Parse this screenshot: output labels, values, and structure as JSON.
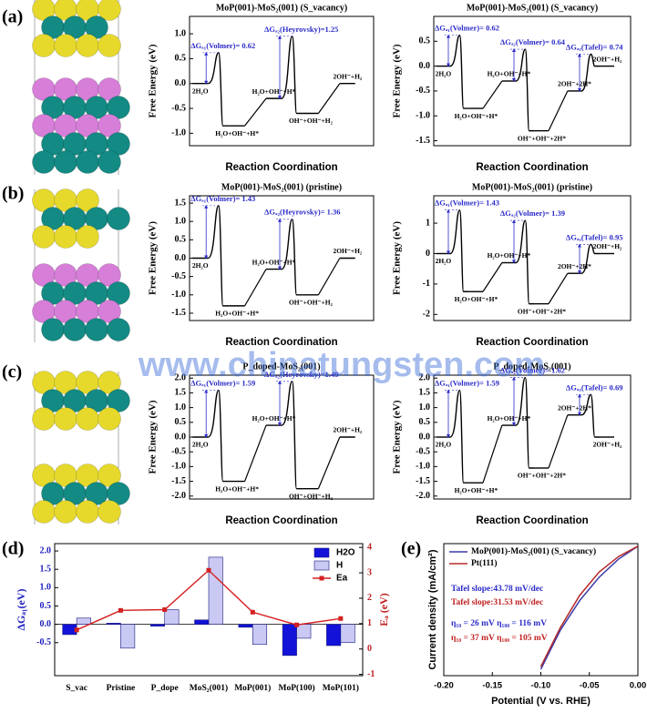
{
  "panel_labels": [
    "(a)",
    "(b)",
    "(c)",
    "(d)",
    "(e)"
  ],
  "watermark": "www.chinatungsten.com",
  "chart_data": [
    {
      "type": "step",
      "title": "MoP(001)-MoS₂(001) (S_vacancy)",
      "x_label": "Reaction Coordination",
      "y_label": "Free Energy (eV)",
      "color": "#000000",
      "annotation_color": "#2b2bc8",
      "ylim": [
        -1.25,
        1.35
      ],
      "yticks": [
        {
          "value": 1,
          "label": "1.0"
        },
        0.5,
        {
          "value": 0,
          "label": "0.0"
        },
        -0.5,
        {
          "value": -1,
          "label": "-1.0"
        }
      ],
      "states": [
        {
          "label": "2H₂O",
          "value": 0
        },
        {
          "label": "H₂O+OH⁻+H*",
          "value": -0.85
        },
        {
          "label": "H₂O+OH⁻+H*",
          "value": -0.3
        },
        {
          "label": "OH⁻+OH⁻+H₂",
          "value": -0.6
        },
        {
          "label": "2OH⁻+H₂",
          "value": 0
        }
      ],
      "barriers": [
        {
          "label": "ΔGₐ₁(Volmer)= 0.62",
          "value": 0.62
        },
        null,
        {
          "label": "ΔGₐ₂(Heyrovsky)=1.25",
          "value": 1.25
        },
        null,
        null
      ]
    },
    {
      "type": "step",
      "title": "MoP(001)-MoS₂(001) (S_vacancy)",
      "x_label": "Reaction Coordination",
      "y_label": "Free Energy (eV)",
      "color": "#000000",
      "annotation_color": "#2b2bc8",
      "ylim": [
        -1.6,
        1.0
      ],
      "yticks": [
        0.5,
        {
          "value": 0,
          "label": "0.0"
        },
        -0.5,
        {
          "value": -1,
          "label": "-1.0"
        },
        -1.5
      ],
      "states": [
        {
          "label": "2H₂O",
          "value": 0
        },
        {
          "label": "H₂O+OH⁻+H*",
          "value": -0.85
        },
        {
          "label": "H₂O+OH⁻+H*",
          "value": -0.3
        },
        {
          "label": "OH⁻+OH⁻+2H*",
          "value": -1.3
        },
        {
          "label": "2OH⁻+2H*",
          "value": -0.5
        },
        {
          "label": "2OH⁻+H₂",
          "value": 0
        }
      ],
      "barriers": [
        {
          "label": "ΔGₐ₁(Volmer)= 0.62",
          "value": 0.62
        },
        null,
        {
          "label": "ΔGₐ₂(Volmer)= 0.64",
          "value": 0.64
        },
        null,
        {
          "label": "ΔGₐ₃(Tafel)= 0.74",
          "value": 0.74
        },
        null
      ]
    },
    {
      "type": "step",
      "title": "MoP(001)-MoS₂(001) (pristine)",
      "x_label": "Reaction Coordination",
      "y_label": "Free Energy (eV)",
      "color": "#000000",
      "annotation_color": "#2b2bc8",
      "ylim": [
        -1.7,
        1.7
      ],
      "yticks": [
        1.5,
        {
          "value": 1,
          "label": "1.0"
        },
        0.5,
        {
          "value": 0,
          "label": "0.0"
        },
        -0.5,
        {
          "value": -1,
          "label": "-1.0"
        },
        -1.5
      ],
      "states": [
        {
          "label": "2H₂O",
          "value": 0
        },
        {
          "label": "H₂O+OH⁻+H*",
          "value": -1.3
        },
        {
          "label": "H₂O+OH⁻+H*",
          "value": -0.3
        },
        {
          "label": "OH⁻+OH⁻+H₂",
          "value": -1.0
        },
        {
          "label": "2OH⁻+H₂",
          "value": 0
        }
      ],
      "barriers": [
        {
          "label": "ΔGₐ₁(Volmer)= 1.43",
          "value": 1.43
        },
        null,
        {
          "label": "ΔGₐ₂(Heyrovsky)= 1.36",
          "value": 1.36
        },
        null,
        null
      ]
    },
    {
      "type": "step",
      "title": "MoP(001)-MoS₂(001) (pristine)",
      "x_label": "Reaction Coordination",
      "y_label": "Free Energy (eV)",
      "color": "#000000",
      "annotation_color": "#2b2bc8",
      "ylim": [
        -2.2,
        1.9
      ],
      "yticks": [
        1,
        0,
        -1,
        -2
      ],
      "states": [
        {
          "label": "2H₂O",
          "value": 0
        },
        {
          "label": "H₂O+OH⁻+H*",
          "value": -1.25
        },
        {
          "label": "H₂O+OH⁻+H*",
          "value": -0.3
        },
        {
          "label": "OH⁻+OH⁻+2H*",
          "value": -1.65
        },
        {
          "label": "2OH⁻+2H*",
          "value": -0.65
        },
        {
          "label": "2OH⁻+H₂",
          "value": 0
        }
      ],
      "barriers": [
        {
          "label": "ΔGₐ₁(Volmer)= 1.43",
          "value": 1.43
        },
        null,
        {
          "label": "ΔGₐ₂(Volmer)= 1.39",
          "value": 1.39
        },
        null,
        {
          "label": "ΔGₐ₃(Tafel)= 0.95",
          "value": 0.95
        },
        null
      ]
    },
    {
      "type": "step",
      "title": "P_doped-MoS₂(001)",
      "x_label": "Reaction Coordination",
      "y_label": "Free Energy (eV)",
      "color": "#000000",
      "annotation_color": "#2b2bc8",
      "ylim": [
        -2.1,
        2.1
      ],
      "yticks": [
        {
          "value": 2,
          "label": "2.0"
        },
        1.5,
        {
          "value": 1,
          "label": "1.0"
        },
        0.5,
        {
          "value": 0,
          "label": "0.0"
        },
        -0.5,
        {
          "value": -1,
          "label": "-1.0"
        },
        -1.5,
        {
          "value": -2,
          "label": "-2.0"
        }
      ],
      "states": [
        {
          "label": "2H₂O",
          "value": 0
        },
        {
          "label": "H₂O+OH⁻+H*",
          "value": -1.5
        },
        {
          "label": "H₂O+OH⁻+H*",
          "value": 0.4
        },
        {
          "label": "OH⁻+OH⁻+H₂",
          "value": -1.75
        },
        {
          "label": "2OH⁻+H₂",
          "value": 0
        }
      ],
      "barriers": [
        {
          "label": "ΔGₐ₁(Volmer)= 1.59",
          "value": 1.59
        },
        null,
        {
          "label": "ΔGₐ₂(Heyrovsky)=1.49",
          "value": 1.49
        },
        null,
        null
      ]
    },
    {
      "type": "step",
      "title": "P_doped-MoS₂(001)",
      "x_label": "Reaction Coordination",
      "y_label": "Free Energy (eV)",
      "color": "#000000",
      "annotation_color": "#2b2bc8",
      "ylim": [
        -2.1,
        2.1
      ],
      "yticks": [
        {
          "value": 2,
          "label": "2.0"
        },
        1.5,
        {
          "value": 1,
          "label": "1.0"
        },
        0.5,
        {
          "value": 0,
          "label": "0.0"
        },
        -0.5,
        {
          "value": -1,
          "label": "-1.0"
        },
        -1.5,
        {
          "value": -2,
          "label": "-2.0"
        }
      ],
      "states": [
        {
          "label": "2H₂O",
          "value": 0
        },
        {
          "label": "H₂O+OH⁻+H*",
          "value": -1.55
        },
        {
          "label": "H₂O+OH⁻+H*",
          "value": 0.4
        },
        {
          "label": "OH⁻+OH⁻+2H*",
          "value": -1.05
        },
        {
          "label": "2OH⁻+2H*",
          "value": 0.75
        },
        {
          "label": "2OH⁻+H₂",
          "value": 0
        }
      ],
      "barriers": [
        {
          "label": "ΔGₐ₁(Volmer)= 1.59",
          "value": 1.59
        },
        null,
        {
          "label": "ΔGₐ₂(Volmer)= 1.62",
          "value": 1.62
        },
        null,
        {
          "label": "ΔGₐ₃(Tafel)= 0.69",
          "value": 0.69
        },
        null
      ]
    },
    {
      "type": "bar",
      "y_label": "ΔGₐ₁(eV)",
      "y2_label": "Eₐ (eV)",
      "legend": "upper right",
      "categories": [
        "S_vac",
        "Pristine",
        "P_dope",
        "MoS₂(001)",
        "MoP(001)",
        "MoP(100)",
        "MoP(101)"
      ],
      "ylim": [
        -1.4,
        2.2
      ],
      "yticks": [
        {
          "value": 2,
          "label": "2.0"
        },
        1.5,
        {
          "value": 1,
          "label": "1.0"
        },
        0.5,
        {
          "value": 0,
          "label": "0.0"
        },
        -0.5
      ],
      "y2lim": [
        -1.05,
        4.15
      ],
      "y2ticks": [
        4,
        3,
        2,
        1,
        0,
        -1
      ],
      "series": [
        {
          "name": "H2O",
          "color": "#1212d8",
          "values": [
            -0.28,
            0.03,
            -0.05,
            0.12,
            -0.08,
            -0.85,
            -0.58
          ]
        },
        {
          "name": "H",
          "color": "#c9c9f4",
          "values": [
            0.17,
            -0.65,
            0.4,
            1.83,
            -0.55,
            -0.38,
            -0.5
          ]
        },
        {
          "name": "Ea",
          "color": "#d42020",
          "axis": "y2",
          "values": [
            0.75,
            1.52,
            1.55,
            3.1,
            1.45,
            0.95,
            1.2
          ]
        }
      ]
    },
    {
      "type": "line",
      "x_label": "Potential (V vs. RHE)",
      "y_label": "Current density (mA/cm²)",
      "legend": "upper left",
      "xlim": [
        -0.2,
        0.0
      ],
      "xticks": [
        {
          "value": -0.2,
          "label": "-0.20"
        },
        {
          "value": -0.15,
          "label": "-0.15"
        },
        {
          "value": -0.1,
          "label": "-0.10"
        },
        {
          "value": -0.05,
          "label": "-0.05"
        },
        {
          "value": 0,
          "label": "0.00"
        }
      ],
      "ylim": [
        -100,
        2
      ],
      "x": [
        0,
        -0.02,
        -0.04,
        -0.06,
        -0.08,
        -0.1
      ],
      "series": [
        {
          "name": "MoP(001)-MoS₂(001) (S_vacancy)",
          "color": "#3a3aa8",
          "values": [
            0,
            -10,
            -24,
            -42,
            -65,
            -95
          ]
        },
        {
          "name": "Pt(111)",
          "color": "#b52a2a",
          "values": [
            0,
            -8,
            -20,
            -38,
            -63,
            -93
          ]
        }
      ],
      "annotations": [
        {
          "text": "Tafel slope:43.78 mV/dec",
          "color": "#2b2bc8"
        },
        {
          "text": "Tafel slope:31.53 mV/dec",
          "color": "#c02020"
        },
        {
          "text": "η₁₀ = 26 mV  η₁₀₀ = 116 mV",
          "color": "#2b2bc8"
        },
        {
          "text": "η₁₀ = 37 mV  η₁₀₀ = 105 mV",
          "color": "#c02020"
        }
      ]
    }
  ]
}
